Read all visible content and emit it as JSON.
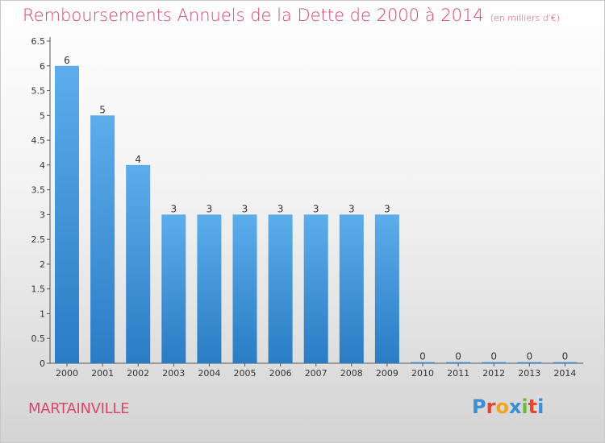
{
  "title": "Remboursements Annuels de la Dette de 2000 à 2014",
  "subtitle": "(en milliers d'€)",
  "commune": "MARTAINVILLE",
  "logo": {
    "letters": [
      "P",
      "r",
      "o",
      "x",
      "i",
      "t",
      "i"
    ],
    "colors": [
      "#3a8fd6",
      "#e6462d",
      "#f4a51c",
      "#3a8fd6",
      "#6fb83a",
      "#e6462d",
      "#3a8fd6"
    ]
  },
  "colors": {
    "bar_top": "#5cadeb",
    "bar_bottom": "#2a7cc4",
    "title": "#d9476b",
    "axis": "#555555"
  },
  "chart_data": {
    "type": "bar",
    "categories": [
      "2000",
      "2001",
      "2002",
      "2003",
      "2004",
      "2005",
      "2006",
      "2007",
      "2008",
      "2009",
      "2010",
      "2011",
      "2012",
      "2013",
      "2014"
    ],
    "values": [
      6,
      5,
      4,
      3,
      3,
      3,
      3,
      3,
      3,
      3,
      0,
      0,
      0,
      0,
      0
    ],
    "data_labels": [
      "6",
      "5",
      "4",
      "3",
      "3",
      "3",
      "3",
      "3",
      "3",
      "3",
      "0",
      "0",
      "0",
      "0",
      "0"
    ],
    "ylim": [
      0,
      6.5
    ],
    "yticks": [
      0,
      0.5,
      1,
      1.5,
      2,
      2.5,
      3,
      3.5,
      4,
      4.5,
      5,
      5.5,
      6,
      6.5
    ],
    "ytick_labels": [
      "0",
      "0.5",
      "1",
      "1.5",
      "2",
      "2.5",
      "3",
      "3.5",
      "4",
      "4.5",
      "5",
      "5.5",
      "6",
      "6.5"
    ],
    "grid": false,
    "legend": "none",
    "xlabel": "",
    "ylabel": ""
  }
}
